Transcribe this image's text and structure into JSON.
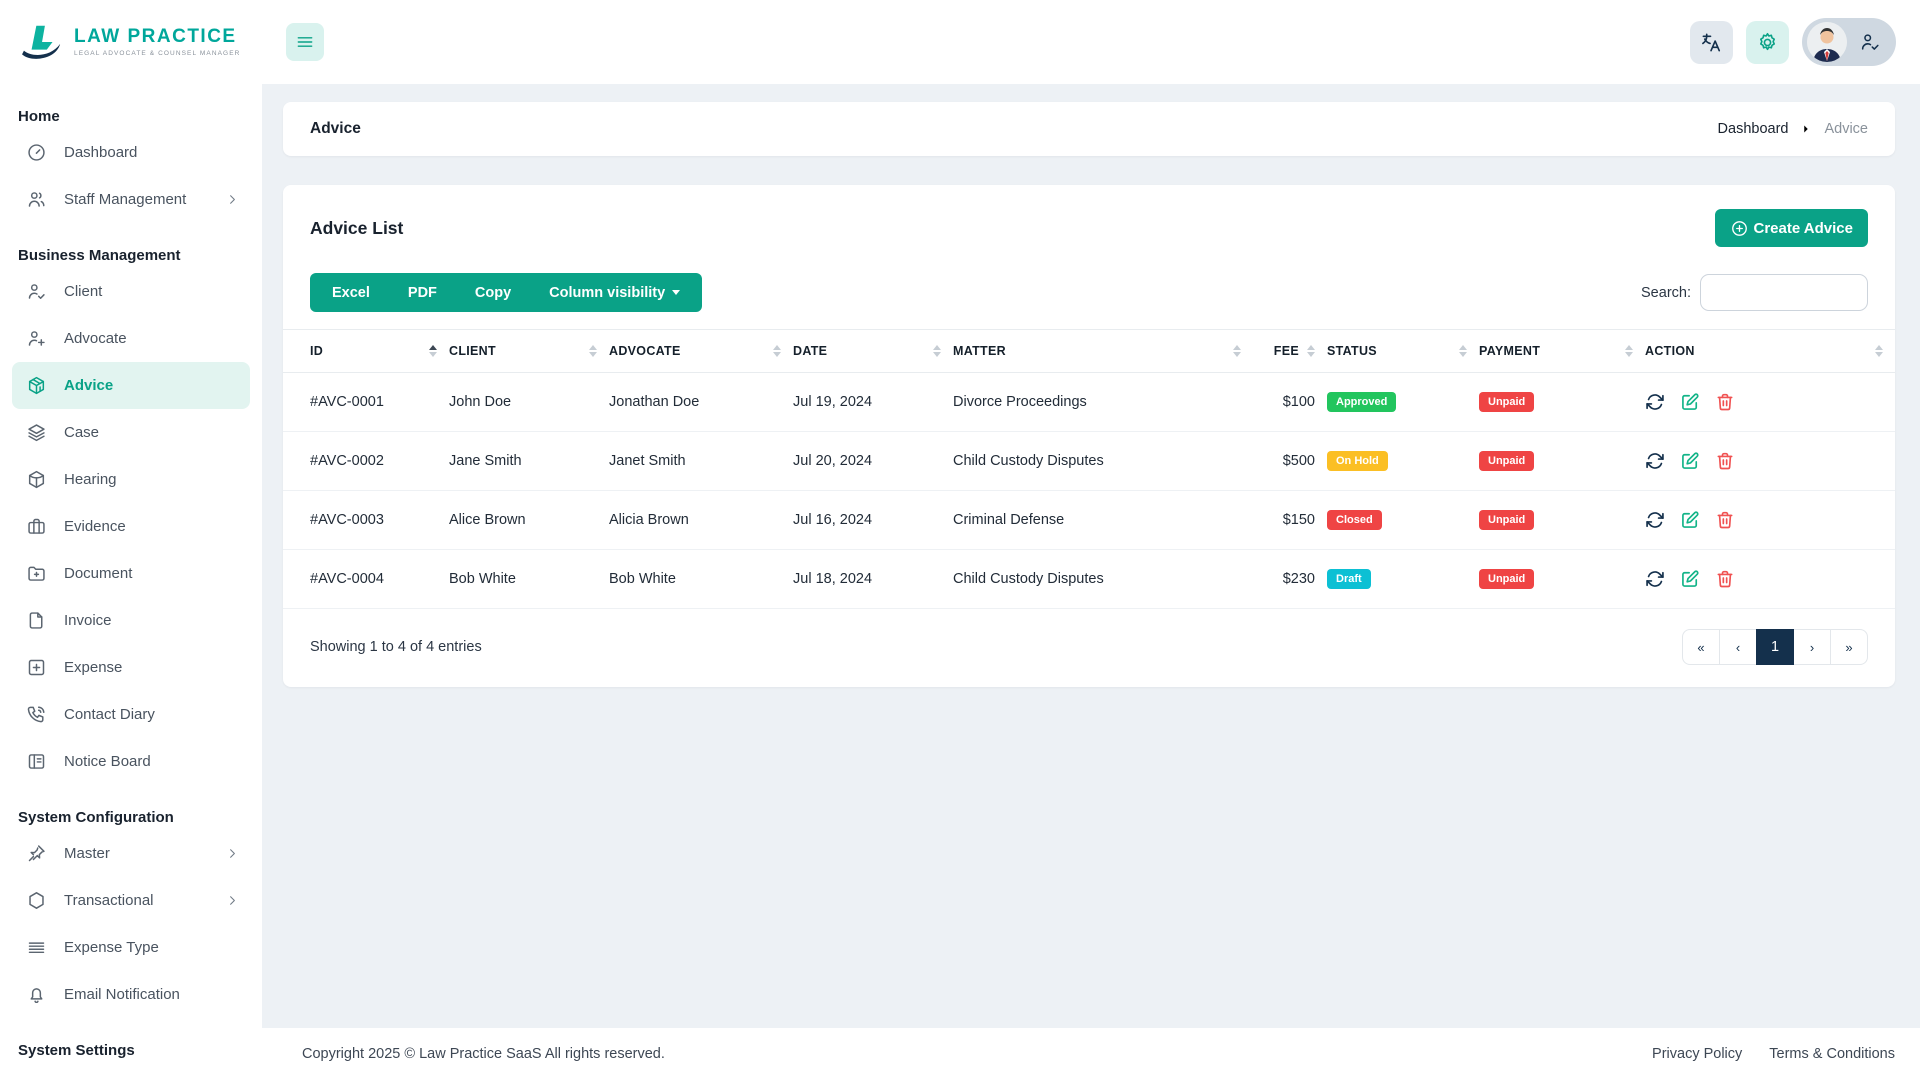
{
  "brand": {
    "name": "LAW PRACTICE",
    "tagline": "LEGAL ADVOCATE & COUNSEL MANAGER"
  },
  "header": {
    "buttons": [
      {
        "name": "translate-button",
        "icon": "translate-icon",
        "style": "gray"
      },
      {
        "name": "settings-button",
        "icon": "gear-icon",
        "style": "teal"
      }
    ],
    "user_menu_icon": "user-check-icon"
  },
  "sidebar": {
    "sections": [
      {
        "title": "Home",
        "items": [
          {
            "label": "Dashboard",
            "icon": "gauge-icon",
            "active": false,
            "chevron": false
          },
          {
            "label": "Staff Management",
            "icon": "users-icon",
            "active": false,
            "chevron": true
          }
        ]
      },
      {
        "title": "Business Management",
        "items": [
          {
            "label": "Client",
            "icon": "user-check-icon",
            "active": false,
            "chevron": false
          },
          {
            "label": "Advocate",
            "icon": "user-plus-icon",
            "active": false,
            "chevron": false
          },
          {
            "label": "Advice",
            "icon": "box-3d-icon",
            "active": true,
            "chevron": false
          },
          {
            "label": "Case",
            "icon": "layers-icon",
            "active": false,
            "chevron": false
          },
          {
            "label": "Hearing",
            "icon": "cube-icon",
            "active": false,
            "chevron": false
          },
          {
            "label": "Evidence",
            "icon": "briefcase-icon",
            "active": false,
            "chevron": false
          },
          {
            "label": "Document",
            "icon": "folder-plus-icon",
            "active": false,
            "chevron": false
          },
          {
            "label": "Invoice",
            "icon": "file-icon",
            "active": false,
            "chevron": false
          },
          {
            "label": "Expense",
            "icon": "square-plus-icon",
            "active": false,
            "chevron": false
          },
          {
            "label": "Contact Diary",
            "icon": "phone-icon",
            "active": false,
            "chevron": false
          },
          {
            "label": "Notice Board",
            "icon": "board-icon",
            "active": false,
            "chevron": false
          }
        ]
      },
      {
        "title": "System Configuration",
        "items": [
          {
            "label": "Master",
            "icon": "pin-icon",
            "active": false,
            "chevron": true
          },
          {
            "label": "Transactional",
            "icon": "hexagon-icon",
            "active": false,
            "chevron": true
          },
          {
            "label": "Expense Type",
            "icon": "lines-icon",
            "active": false,
            "chevron": false
          },
          {
            "label": "Email Notification",
            "icon": "bell-icon",
            "active": false,
            "chevron": false
          }
        ]
      },
      {
        "title": "System Settings",
        "items": []
      }
    ]
  },
  "page": {
    "title": "Advice",
    "breadcrumb": [
      "Dashboard",
      "Advice"
    ]
  },
  "card": {
    "title": "Advice List",
    "create_button": "Create Advice",
    "export_buttons": [
      "Excel",
      "PDF",
      "Copy"
    ],
    "column_visibility_button": "Column visibility",
    "search_label": "Search:",
    "search_value": ""
  },
  "table": {
    "columns": [
      "ID",
      "CLIENT",
      "ADVOCATE",
      "DATE",
      "MATTER",
      "FEE",
      "STATUS",
      "PAYMENT",
      "ACTION"
    ],
    "sort": {
      "column": "ID",
      "direction": "asc"
    },
    "rows": [
      {
        "id": "#AVC-0001",
        "client": "John Doe",
        "advocate": "Jonathan Doe",
        "date": "Jul 19, 2024",
        "matter": "Divorce Proceedings",
        "fee": "$100",
        "status": "Approved",
        "status_color": "#22c55e",
        "payment": "Unpaid",
        "payment_color": "#ef4444"
      },
      {
        "id": "#AVC-0002",
        "client": "Jane Smith",
        "advocate": "Janet Smith",
        "date": "Jul 20, 2024",
        "matter": "Child Custody Disputes",
        "fee": "$500",
        "status": "On Hold",
        "status_color": "#fbbf24",
        "payment": "Unpaid",
        "payment_color": "#ef4444"
      },
      {
        "id": "#AVC-0003",
        "client": "Alice Brown",
        "advocate": "Alicia Brown",
        "date": "Jul 16, 2024",
        "matter": "Criminal Defense",
        "fee": "$150",
        "status": "Closed",
        "status_color": "#ef4444",
        "payment": "Unpaid",
        "payment_color": "#ef4444"
      },
      {
        "id": "#AVC-0004",
        "client": "Bob White",
        "advocate": "Bob White",
        "date": "Jul 18, 2024",
        "matter": "Child Custody Disputes",
        "fee": "$230",
        "status": "Draft",
        "status_color": "#0cc0d4",
        "payment": "Unpaid",
        "payment_color": "#ef4444"
      }
    ],
    "row_actions": [
      "refresh",
      "edit",
      "delete"
    ],
    "summary": "Showing 1 to 4 of 4 entries",
    "pagination": {
      "buttons": [
        "«",
        "‹",
        "1",
        "›",
        "»"
      ],
      "active": "1"
    }
  },
  "footer": {
    "copyright": "Copyright 2025 © Law Practice SaaS All rights reserved.",
    "links": [
      "Privacy Policy",
      "Terms & Conditions"
    ]
  },
  "colors": {
    "accent_teal": "#0aa287",
    "navy": "#14304c",
    "content_bg": "#edf1f5",
    "active_item_bg": "#e2f4f0",
    "status_approved": "#22c55e",
    "status_on_hold": "#fbbf24",
    "status_closed": "#ef4444",
    "status_draft": "#0cc0d4",
    "payment_unpaid": "#ef4444"
  }
}
